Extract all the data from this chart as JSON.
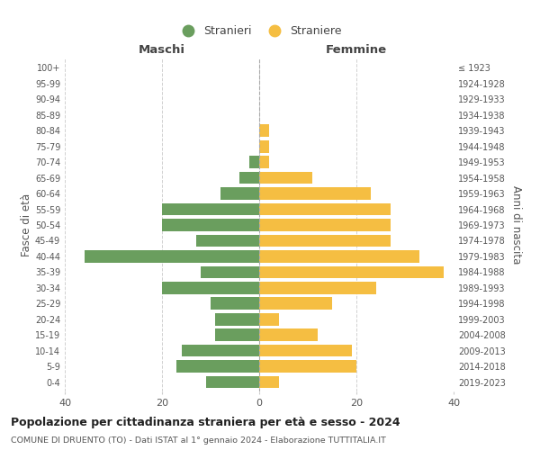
{
  "age_groups": [
    "0-4",
    "5-9",
    "10-14",
    "15-19",
    "20-24",
    "25-29",
    "30-34",
    "35-39",
    "40-44",
    "45-49",
    "50-54",
    "55-59",
    "60-64",
    "65-69",
    "70-74",
    "75-79",
    "80-84",
    "85-89",
    "90-94",
    "95-99",
    "100+"
  ],
  "birth_years": [
    "2019-2023",
    "2014-2018",
    "2009-2013",
    "2004-2008",
    "1999-2003",
    "1994-1998",
    "1989-1993",
    "1984-1988",
    "1979-1983",
    "1974-1978",
    "1969-1973",
    "1964-1968",
    "1959-1963",
    "1954-1958",
    "1949-1953",
    "1944-1948",
    "1939-1943",
    "1934-1938",
    "1929-1933",
    "1924-1928",
    "≤ 1923"
  ],
  "maschi": [
    11,
    17,
    16,
    9,
    9,
    10,
    20,
    12,
    36,
    13,
    20,
    20,
    8,
    4,
    2,
    0,
    0,
    0,
    0,
    0,
    0
  ],
  "femmine": [
    4,
    20,
    19,
    12,
    4,
    15,
    24,
    38,
    33,
    27,
    27,
    27,
    23,
    11,
    2,
    2,
    2,
    0,
    0,
    0,
    0
  ],
  "color_maschi": "#6a9e5e",
  "color_femmine": "#f5be42",
  "title": "Popolazione per cittadinanza straniera per età e sesso - 2024",
  "subtitle": "COMUNE DI DRUENTO (TO) - Dati ISTAT al 1° gennaio 2024 - Elaborazione TUTTITALIA.IT",
  "xlabel_left": "Maschi",
  "xlabel_right": "Femmine",
  "ylabel_left": "Fasce di età",
  "ylabel_right": "Anni di nascita",
  "xlim": 40,
  "legend_maschi": "Stranieri",
  "legend_femmine": "Straniere",
  "background_color": "#ffffff",
  "grid_color": "#cccccc",
  "label_color": "#555555"
}
